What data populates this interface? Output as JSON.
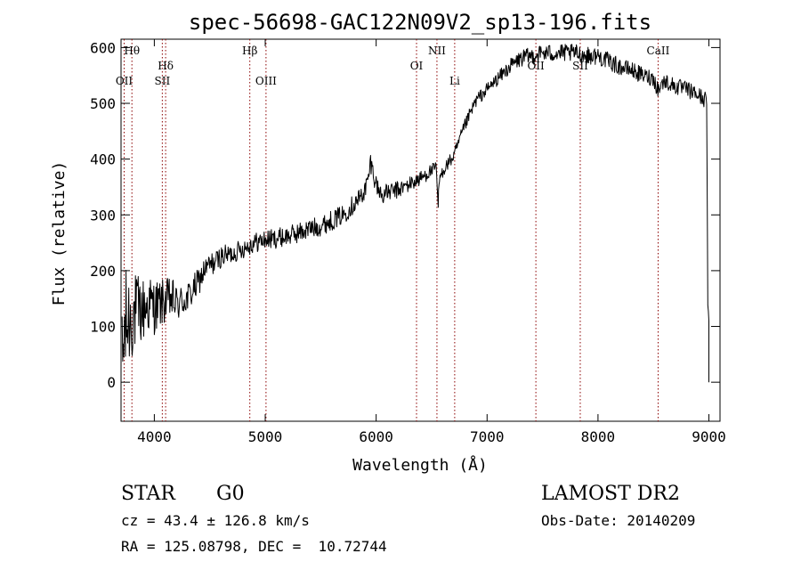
{
  "chart_data": {
    "type": "line",
    "title": "spec-56698-GAC122N09V2_sp13-196.fits",
    "xlabel": "Wavelength (Å)",
    "ylabel": "Flux (relative)",
    "xlim": [
      3700,
      9100
    ],
    "ylim": [
      -70,
      615
    ],
    "x_ticks": [
      4000,
      5000,
      6000,
      7000,
      8000,
      9000
    ],
    "y_ticks": [
      0,
      100,
      200,
      300,
      400,
      500,
      600
    ],
    "series": [
      {
        "name": "spectrum",
        "x": [
          3710,
          3730,
          3760,
          3800,
          3850,
          3900,
          3950,
          4000,
          4050,
          4100,
          4150,
          4200,
          4250,
          4300,
          4350,
          4400,
          4450,
          4500,
          4550,
          4600,
          4700,
          4800,
          4900,
          5000,
          5100,
          5200,
          5300,
          5400,
          5500,
          5600,
          5700,
          5800,
          5850,
          5900,
          5930,
          5950,
          6000,
          6050,
          6100,
          6200,
          6300,
          6400,
          6500,
          6540,
          6560,
          6562,
          6580,
          6620,
          6700,
          6800,
          6900,
          7000,
          7100,
          7200,
          7300,
          7400,
          7500,
          7600,
          7700,
          7800,
          7900,
          8000,
          8100,
          8200,
          8300,
          8400,
          8500,
          8540,
          8600,
          8700,
          8800,
          8900,
          8980,
          8990,
          9000
        ],
        "y": [
          20,
          90,
          110,
          120,
          125,
          130,
          140,
          135,
          140,
          145,
          150,
          140,
          145,
          150,
          165,
          180,
          200,
          210,
          215,
          225,
          230,
          240,
          250,
          255,
          258,
          262,
          268,
          275,
          280,
          290,
          300,
          320,
          330,
          345,
          365,
          395,
          355,
          335,
          340,
          345,
          355,
          365,
          380,
          385,
          315,
          345,
          370,
          385,
          405,
          460,
          505,
          525,
          545,
          565,
          580,
          585,
          590,
          590,
          590,
          590,
          585,
          585,
          575,
          565,
          560,
          550,
          545,
          525,
          540,
          530,
          525,
          515,
          505,
          130,
          110
        ],
        "noise": [
          110,
          110,
          100,
          80,
          70,
          60,
          55,
          50,
          45,
          40,
          40,
          35,
          30,
          30,
          28,
          25,
          22,
          22,
          20,
          20,
          18,
          18,
          18,
          18,
          18,
          18,
          18,
          18,
          18,
          18,
          18,
          18,
          18,
          18,
          18,
          18,
          18,
          16,
          16,
          16,
          14,
          14,
          12,
          10,
          6,
          6,
          10,
          12,
          12,
          12,
          12,
          12,
          12,
          14,
          15,
          16,
          16,
          16,
          16,
          16,
          16,
          16,
          16,
          15,
          15,
          15,
          15,
          15,
          15,
          15,
          15,
          15,
          15,
          10,
          10
        ]
      }
    ],
    "lines": [
      {
        "label": "Hθ",
        "x": 3798,
        "row": 0
      },
      {
        "label": "OII",
        "x": 3728,
        "row": 2
      },
      {
        "label": "Hδ",
        "x": 4102,
        "row": 1
      },
      {
        "label": "SII",
        "x": 4072,
        "row": 2
      },
      {
        "label": "Hβ",
        "x": 4861,
        "row": 0
      },
      {
        "label": "OIII",
        "x": 5007,
        "row": 2
      },
      {
        "label": "OI",
        "x": 6364,
        "row": 1
      },
      {
        "label": "NII",
        "x": 6548,
        "row": 0
      },
      {
        "label": "Li",
        "x": 6708,
        "row": 2
      },
      {
        "label": "OII",
        "x": 7440,
        "row": 1
      },
      {
        "label": "SII",
        "x": 7840,
        "row": 1
      },
      {
        "label": "CaII",
        "x": 8542,
        "row": 0
      }
    ]
  },
  "info": {
    "object_type": "STAR",
    "subclass": "G0",
    "survey": "LAMOST DR2",
    "cz": "cz = 43.4 ± 126.8 km/s",
    "obs_date": "Obs-Date: 20140209",
    "coords": "RA = 125.08798, DEC =  10.72744"
  },
  "colors": {
    "line_marker": "#8b0000",
    "spectrum": "#000000"
  }
}
